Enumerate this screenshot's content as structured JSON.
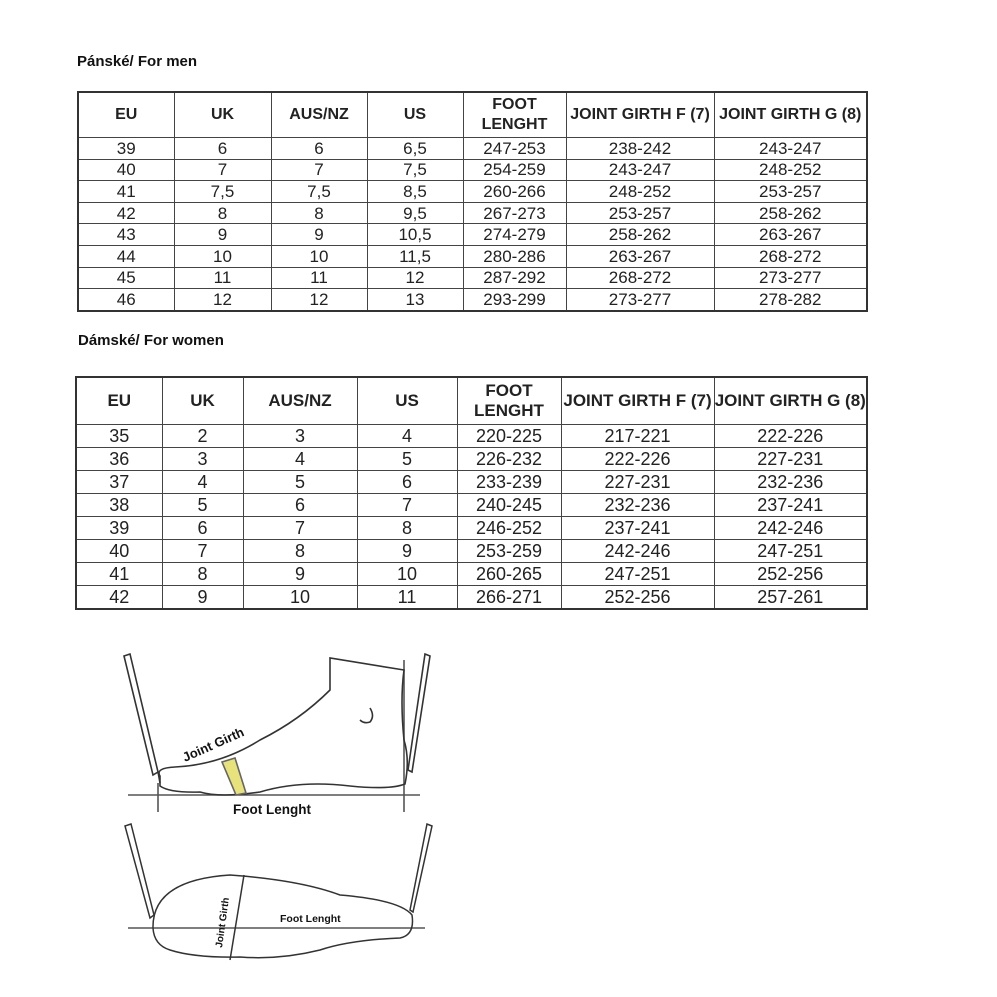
{
  "men": {
    "heading": "Pánské/ For men",
    "headers": [
      "EU",
      "UK",
      "AUS/NZ",
      "US",
      "FOOT LENGHT",
      "JOINT GIRTH F (7)",
      "JOINT GIRTH G (8)"
    ],
    "rows": [
      [
        "39",
        "6",
        "6",
        "6,5",
        "247-253",
        "238-242",
        "243-247"
      ],
      [
        "40",
        "7",
        "7",
        "7,5",
        "254-259",
        "243-247",
        "248-252"
      ],
      [
        "41",
        "7,5",
        "7,5",
        "8,5",
        "260-266",
        "248-252",
        "253-257"
      ],
      [
        "42",
        "8",
        "8",
        "9,5",
        "267-273",
        "253-257",
        "258-262"
      ],
      [
        "43",
        "9",
        "9",
        "10,5",
        "274-279",
        "258-262",
        "263-267"
      ],
      [
        "44",
        "10",
        "10",
        "11,5",
        "280-286",
        "263-267",
        "268-272"
      ],
      [
        "45",
        "11",
        "11",
        "12",
        "287-292",
        "268-272",
        "273-277"
      ],
      [
        "46",
        "12",
        "12",
        "13",
        "293-299",
        "273-277",
        "278-282"
      ]
    ]
  },
  "women": {
    "heading": "Dámské/ For women",
    "headers": [
      "EU",
      "UK",
      "AUS/NZ",
      "US",
      "FOOT LENGHT",
      "JOINT GIRTH F (7)",
      "JOINT GIRTH G (8)"
    ],
    "rows": [
      [
        "35",
        "2",
        "3",
        "4",
        "220-225",
        "217-221",
        "222-226"
      ],
      [
        "36",
        "3",
        "4",
        "5",
        "226-232",
        "222-226",
        "227-231"
      ],
      [
        "37",
        "4",
        "5",
        "6",
        "233-239",
        "227-231",
        "232-236"
      ],
      [
        "38",
        "5",
        "6",
        "7",
        "240-245",
        "232-236",
        "237-241"
      ],
      [
        "39",
        "6",
        "7",
        "8",
        "246-252",
        "237-241",
        "242-246"
      ],
      [
        "40",
        "7",
        "8",
        "9",
        "253-259",
        "242-246",
        "247-251"
      ],
      [
        "41",
        "8",
        "9",
        "10",
        "260-265",
        "247-251",
        "252-256"
      ],
      [
        "42",
        "9",
        "10",
        "11",
        "266-271",
        "252-256",
        "257-261"
      ]
    ]
  },
  "diagram": {
    "side_girth": "Joint Girth",
    "side_length": "Foot Lenght",
    "top_girth": "Joint Girth",
    "top_length": "Foot Lenght",
    "tape_color": "#e8e27a"
  }
}
